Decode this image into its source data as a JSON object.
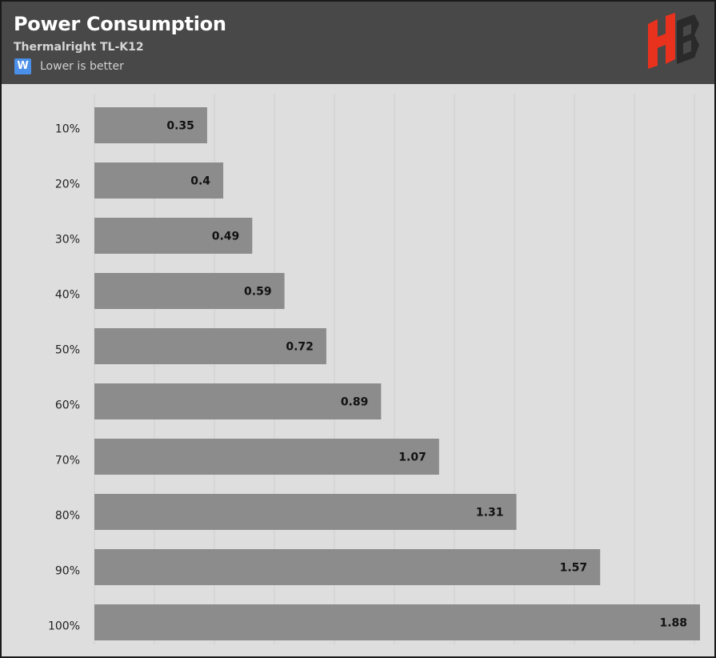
{
  "header": {
    "title": "Power Consumption",
    "subtitle": "Thermalright TL-K12",
    "unit_badge": "W",
    "note": "Lower is better",
    "logo_icon": "hb-logo-icon"
  },
  "colors": {
    "bar": "#8c8c8c",
    "header_bg": "#484848",
    "plot_bg": "#dedede",
    "badge": "#4a8fe8",
    "logo_red": "#e8321e",
    "logo_dark": "#2a2a2a"
  },
  "chart_data": {
    "type": "bar",
    "orientation": "horizontal",
    "title": "Power Consumption",
    "subtitle": "Thermalright TL-K12",
    "categories": [
      "10%",
      "20%",
      "30%",
      "40%",
      "50%",
      "60%",
      "70%",
      "80%",
      "90%",
      "100%"
    ],
    "values": [
      0.35,
      0.4,
      0.49,
      0.59,
      0.72,
      0.89,
      1.07,
      1.31,
      1.57,
      1.88
    ],
    "unit": "W",
    "xlim": [
      0,
      1.88
    ],
    "grid": true,
    "data_labels": true
  }
}
